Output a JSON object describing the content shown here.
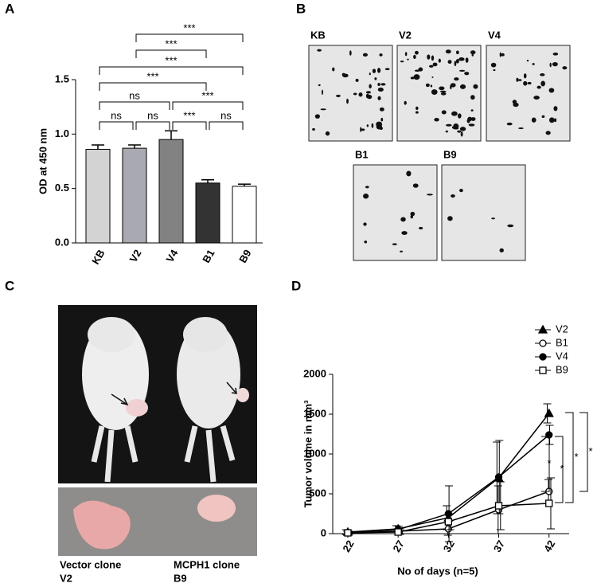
{
  "panels": {
    "labels": [
      "A",
      "B",
      "C",
      "D"
    ]
  },
  "images": {
    "top": [
      "KB",
      "V2",
      "V4"
    ],
    "bottom": [
      "B1",
      "B9"
    ]
  },
  "photo": {
    "captions": [
      [
        "Vector clone",
        "V2"
      ],
      [
        "MCPH1 clone",
        "B9"
      ]
    ]
  },
  "chart_data": [
    {
      "type": "bar",
      "y_label": "OD at 450 nm",
      "categories": [
        "KB",
        "V2",
        "V4",
        "B1",
        "B9"
      ],
      "values": [
        0.86,
        0.87,
        0.95,
        0.55,
        0.52
      ],
      "errors": [
        0.04,
        0.03,
        0.08,
        0.03,
        0.02
      ],
      "colors": [
        "#d3d3d3",
        "#a9a9b1",
        "#828282",
        "#333333",
        "#ffffff"
      ],
      "ylim": [
        0,
        1.5
      ],
      "yticks": [
        {
          "value": 0,
          "label": "0.0"
        },
        0.5,
        {
          "value": 1,
          "label": "1.0"
        },
        1.5
      ],
      "annotations": [
        {
          "pair": [
            "V2",
            "B9"
          ],
          "label": "***"
        },
        {
          "pair": [
            "V2",
            "B1"
          ],
          "label": "***"
        },
        {
          "pair": [
            "KB",
            "B9"
          ],
          "label": "***"
        },
        {
          "pair": [
            "KB",
            "B1"
          ],
          "label": "***"
        },
        {
          "pair": [
            "KB",
            "V4"
          ],
          "label": "ns"
        },
        {
          "pair": [
            "V4",
            "B9"
          ],
          "label": "***"
        },
        {
          "pair": [
            "KB",
            "V2"
          ],
          "label": "ns"
        },
        {
          "pair": [
            "V2",
            "V4"
          ],
          "label": "ns"
        },
        {
          "pair": [
            "V4",
            "B1"
          ],
          "label": "***"
        },
        {
          "pair": [
            "B1",
            "B9"
          ],
          "label": "ns"
        }
      ]
    },
    {
      "type": "line",
      "y_label": "Tumor volume in mm³",
      "x_label": "No of days (n=5)",
      "x": [
        22,
        27,
        32,
        37,
        42
      ],
      "xlim": [
        20.5,
        44
      ],
      "xticks": [
        22,
        27,
        32,
        37,
        42
      ],
      "ylim": [
        0,
        2000
      ],
      "yticks": [
        0,
        500,
        1000,
        1500,
        2000
      ],
      "series": [
        {
          "name": "V2",
          "marker": "triangle",
          "color": "#000000",
          "values": [
            20,
            60,
            200,
            700,
            1510
          ],
          "errors": [
            30,
            40,
            150,
            450,
            120
          ]
        },
        {
          "name": "B1",
          "marker": "circle-open",
          "color": "#000000",
          "values": [
            10,
            30,
            60,
            300,
            530
          ],
          "errors": [
            20,
            30,
            80,
            300,
            150
          ]
        },
        {
          "name": "V4",
          "marker": "circle",
          "color": "#000000",
          "values": [
            15,
            50,
            250,
            710,
            1240
          ],
          "errors": [
            25,
            40,
            350,
            460,
            120
          ]
        },
        {
          "name": "B9",
          "marker": "square-open",
          "color": "#000000",
          "values": [
            10,
            20,
            150,
            350,
            380
          ],
          "errors": [
            15,
            30,
            100,
            300,
            320
          ]
        }
      ],
      "annotations": [
        {
          "label": "*"
        },
        {
          "label": "*"
        },
        {
          "label": "*"
        },
        {
          "label": "*"
        }
      ]
    }
  ]
}
